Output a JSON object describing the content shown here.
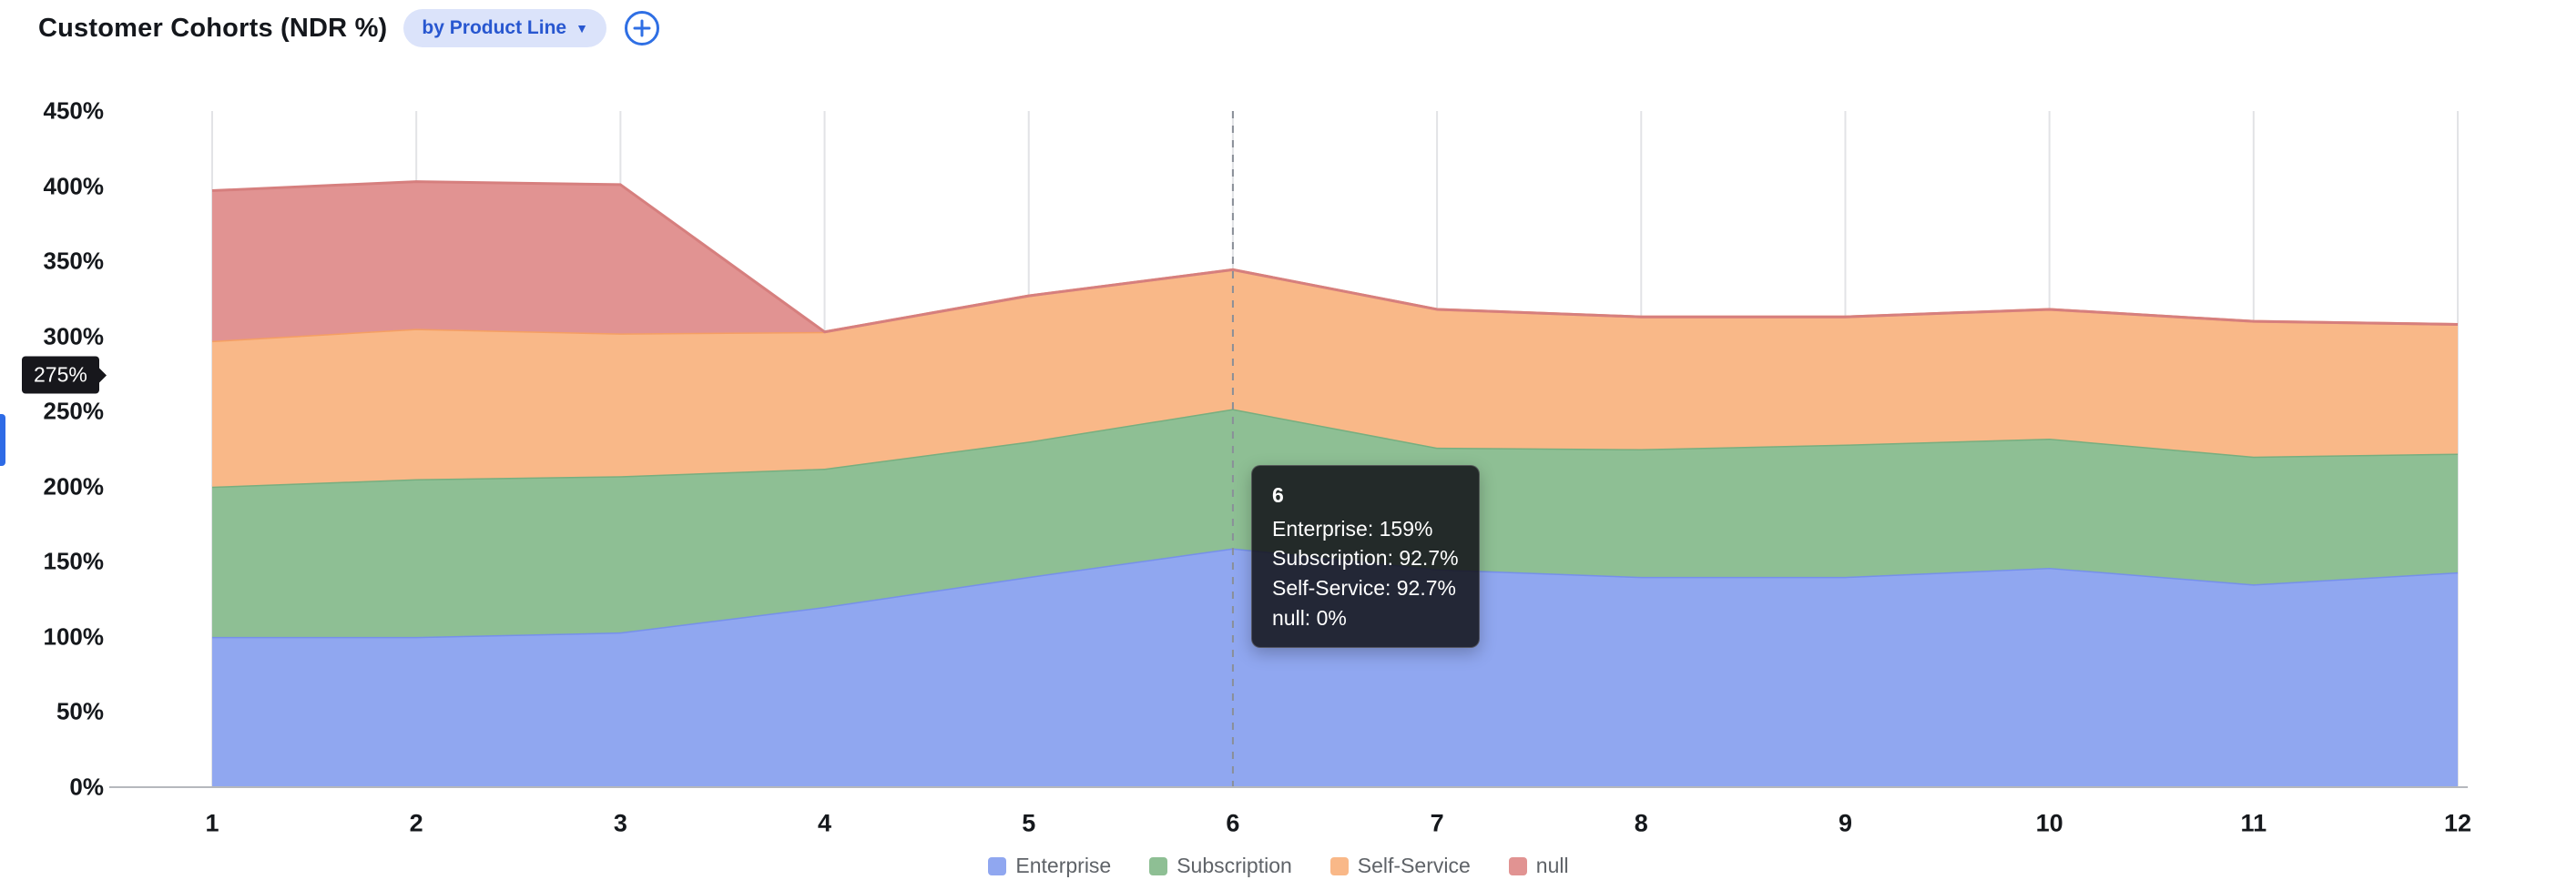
{
  "header": {
    "group_by_label": "by Product Line"
  },
  "colors": {
    "accent_blue": "#2f6fe4",
    "pill_bg": "#dbe3fa",
    "pill_text": "#2857d0",
    "axis_label": "#15181c",
    "grid_line": "#e2e3e6",
    "axis_line": "#b5b8bd",
    "crosshair": "#8a8f98",
    "tooltip_bg": "rgba(17,18,23,0.86)",
    "edge_indicator": "#2e6be6"
  },
  "chart_data": {
    "type": "area",
    "stacked": true,
    "title": "Customer Cohorts (NDR %)",
    "xlabel": "",
    "ylabel": "",
    "x": [
      1,
      2,
      3,
      4,
      5,
      6,
      7,
      8,
      9,
      10,
      11,
      12
    ],
    "ylim": [
      0,
      450
    ],
    "y_tick_step": 50,
    "y_tick_suffix": "%",
    "grid": "vertical-only",
    "legend_position": "bottom",
    "hover_x": 6,
    "series": [
      {
        "name": "Enterprise",
        "fill": "#90a7f0",
        "line": "#7690ea",
        "values": [
          100,
          100,
          103,
          120,
          140,
          159,
          145,
          140,
          140,
          146,
          135,
          143
        ]
      },
      {
        "name": "Subscription",
        "fill": "#8ebf94",
        "line": "#77ae7f",
        "values": [
          100,
          105,
          104,
          92,
          90,
          92.7,
          81,
          85,
          88,
          86,
          85,
          79
        ]
      },
      {
        "name": "Self-Service",
        "fill": "#f9b888",
        "line": "#f59f63",
        "values": [
          97,
          100,
          95,
          91,
          97,
          92.7,
          92,
          88,
          85,
          86,
          90,
          86
        ]
      },
      {
        "name": "null",
        "fill": "#e19392",
        "line": "#d67f7e",
        "values": [
          100,
          98,
          99,
          0,
          0,
          0,
          0,
          0,
          0,
          0,
          0,
          0
        ]
      }
    ]
  },
  "tooltip": {
    "title": "6",
    "rows": [
      "Enterprise: 159%",
      "Subscription: 92.7%",
      "Self-Service: 92.7%",
      "null: 0%"
    ]
  },
  "overlays": {
    "y_axis_pointer_label": "275%"
  }
}
